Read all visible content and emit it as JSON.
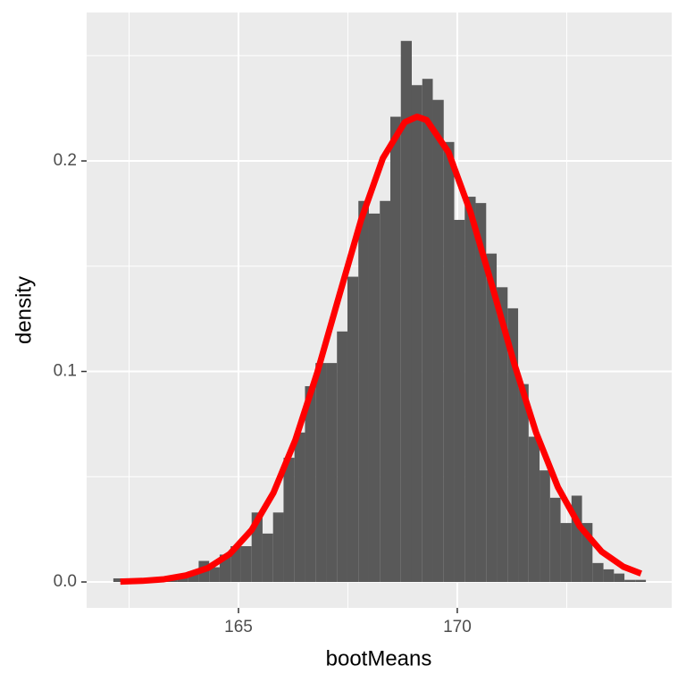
{
  "chart_data": {
    "type": "histogram",
    "x_label": "bootMeans",
    "y_label": "density",
    "bins": [
      162.14,
      162.38,
      162.63,
      162.87,
      163.11,
      163.36,
      163.6,
      163.84,
      164.09,
      164.33,
      164.57,
      164.82,
      165.06,
      165.3,
      165.55,
      165.79,
      166.03,
      166.28,
      166.52,
      166.76,
      167.01,
      167.25,
      167.49,
      167.74,
      167.98,
      168.23,
      168.47,
      168.71,
      168.96,
      169.2,
      169.44,
      169.69,
      169.93,
      170.17,
      170.42,
      170.66,
      170.9,
      171.15,
      171.39,
      171.63,
      171.88,
      172.12,
      172.36,
      172.61,
      172.85,
      173.09,
      173.34,
      173.58,
      173.82,
      174.07,
      174.31
    ],
    "values": [
      0.0017,
      0,
      0,
      0.0008,
      0.0008,
      0.0013,
      0.0025,
      0.005,
      0.01,
      0.007,
      0.013,
      0.017,
      0.017,
      0.033,
      0.023,
      0.033,
      0.059,
      0.071,
      0.093,
      0.104,
      0.104,
      0.119,
      0.145,
      0.181,
      0.175,
      0.181,
      0.221,
      0.257,
      0.236,
      0.239,
      0.229,
      0.209,
      0.172,
      0.183,
      0.18,
      0.156,
      0.14,
      0.13,
      0.094,
      0.069,
      0.053,
      0.04,
      0.028,
      0.041,
      0.028,
      0.009,
      0.006,
      0.004,
      0.001,
      0.001
    ],
    "color": "#595959",
    "density_curve": {
      "color": "#ff0000",
      "x": [
        162.3,
        162.8,
        163.3,
        163.8,
        164.3,
        164.8,
        165.3,
        165.8,
        166.3,
        166.8,
        167.3,
        167.8,
        168.3,
        168.8,
        169.08,
        169.3,
        169.8,
        170.3,
        170.8,
        171.3,
        171.8,
        172.3,
        172.8,
        173.3,
        173.8,
        174.2
      ],
      "values": [
        0.00019,
        0.00052,
        0.0013,
        0.0031,
        0.0066,
        0.0133,
        0.0247,
        0.0424,
        0.0675,
        0.0995,
        0.1359,
        0.1719,
        0.2013,
        0.2184,
        0.221,
        0.2194,
        0.2041,
        0.1758,
        0.1404,
        0.1038,
        0.071,
        0.045,
        0.0264,
        0.0144,
        0.0072,
        0.004
      ]
    },
    "xlim": [
      161.53,
      174.9
    ],
    "ylim": [
      -0.0123,
      0.2705
    ],
    "xticks": [
      165,
      170
    ],
    "yticks": [
      {
        "value": 0,
        "label": "0.0"
      },
      {
        "value": 0.1,
        "label": "0.1"
      },
      {
        "value": 0.2,
        "label": "0.2"
      }
    ],
    "x_minor_ticks": [
      162.5,
      167.5,
      172.5
    ],
    "y_minor_ticks": [
      0.05,
      0.15,
      0.25
    ],
    "grid": true
  }
}
